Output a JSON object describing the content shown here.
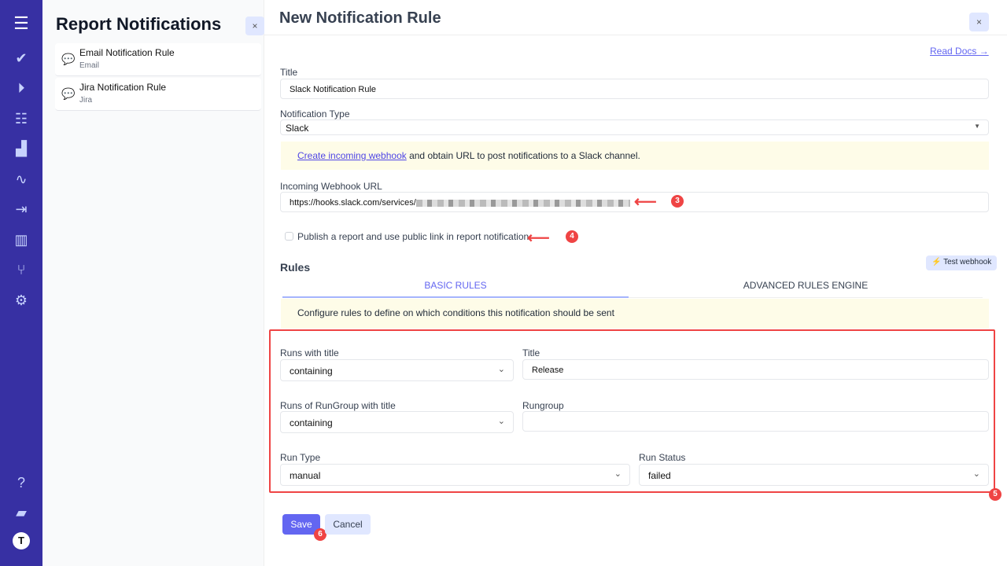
{
  "nav": {
    "icons": [
      "menu-icon",
      "check-icon",
      "play-icon",
      "list-check-icon",
      "steps-icon",
      "pulse-icon",
      "import-icon",
      "analytics-icon",
      "branch-icon",
      "gear-icon",
      "help-icon",
      "folder-icon",
      "user-avatar-icon"
    ]
  },
  "list": {
    "title": "Report Notifications",
    "close": "×",
    "items": [
      {
        "title": "Email Notification Rule",
        "sub": "Email"
      },
      {
        "title": "Jira Notification Rule",
        "sub": "Jira"
      }
    ]
  },
  "main": {
    "title": "New Notification Rule",
    "close": "×",
    "read_docs": "Read Docs →",
    "title_label": "Title",
    "title_value": "Slack Notification Rule",
    "type_label": "Notification Type",
    "type_value": "Slack",
    "note_link": "Create incoming webhook",
    "note_text": " and obtain URL to post notifications to a Slack channel.",
    "webhook_label": "Incoming Webhook URL",
    "webhook_value": "https://hooks.slack.com/services/",
    "publish_label": "Publish a report and use public link in report notification",
    "publish_checked": false,
    "rules_heading": "Rules",
    "test_webhook": "Test webhook",
    "tabs": [
      {
        "label": "BASIC RULES",
        "active": true
      },
      {
        "label": "ADVANCED RULES ENGINE",
        "active": false
      }
    ],
    "rules_note": "Configure rules to define on which conditions this notification should be sent",
    "runs_title_label": "Runs with title",
    "runs_title_op": "containing",
    "title2_label": "Title",
    "title2_value": "Release",
    "rungroup_op_label": "Runs of RunGroup with title",
    "rungroup_op": "containing",
    "rungroup_label": "Rungroup",
    "rungroup_value": "",
    "run_type_label": "Run Type",
    "run_type": "manual",
    "run_status_label": "Run Status",
    "run_status": "failed",
    "save": "Save",
    "cancel": "Cancel"
  },
  "annotations": [
    "3",
    "4",
    "5",
    "6"
  ],
  "colors": {
    "nav": "#3730a3",
    "accent": "#6366f1",
    "highlight": "#ef4444"
  }
}
